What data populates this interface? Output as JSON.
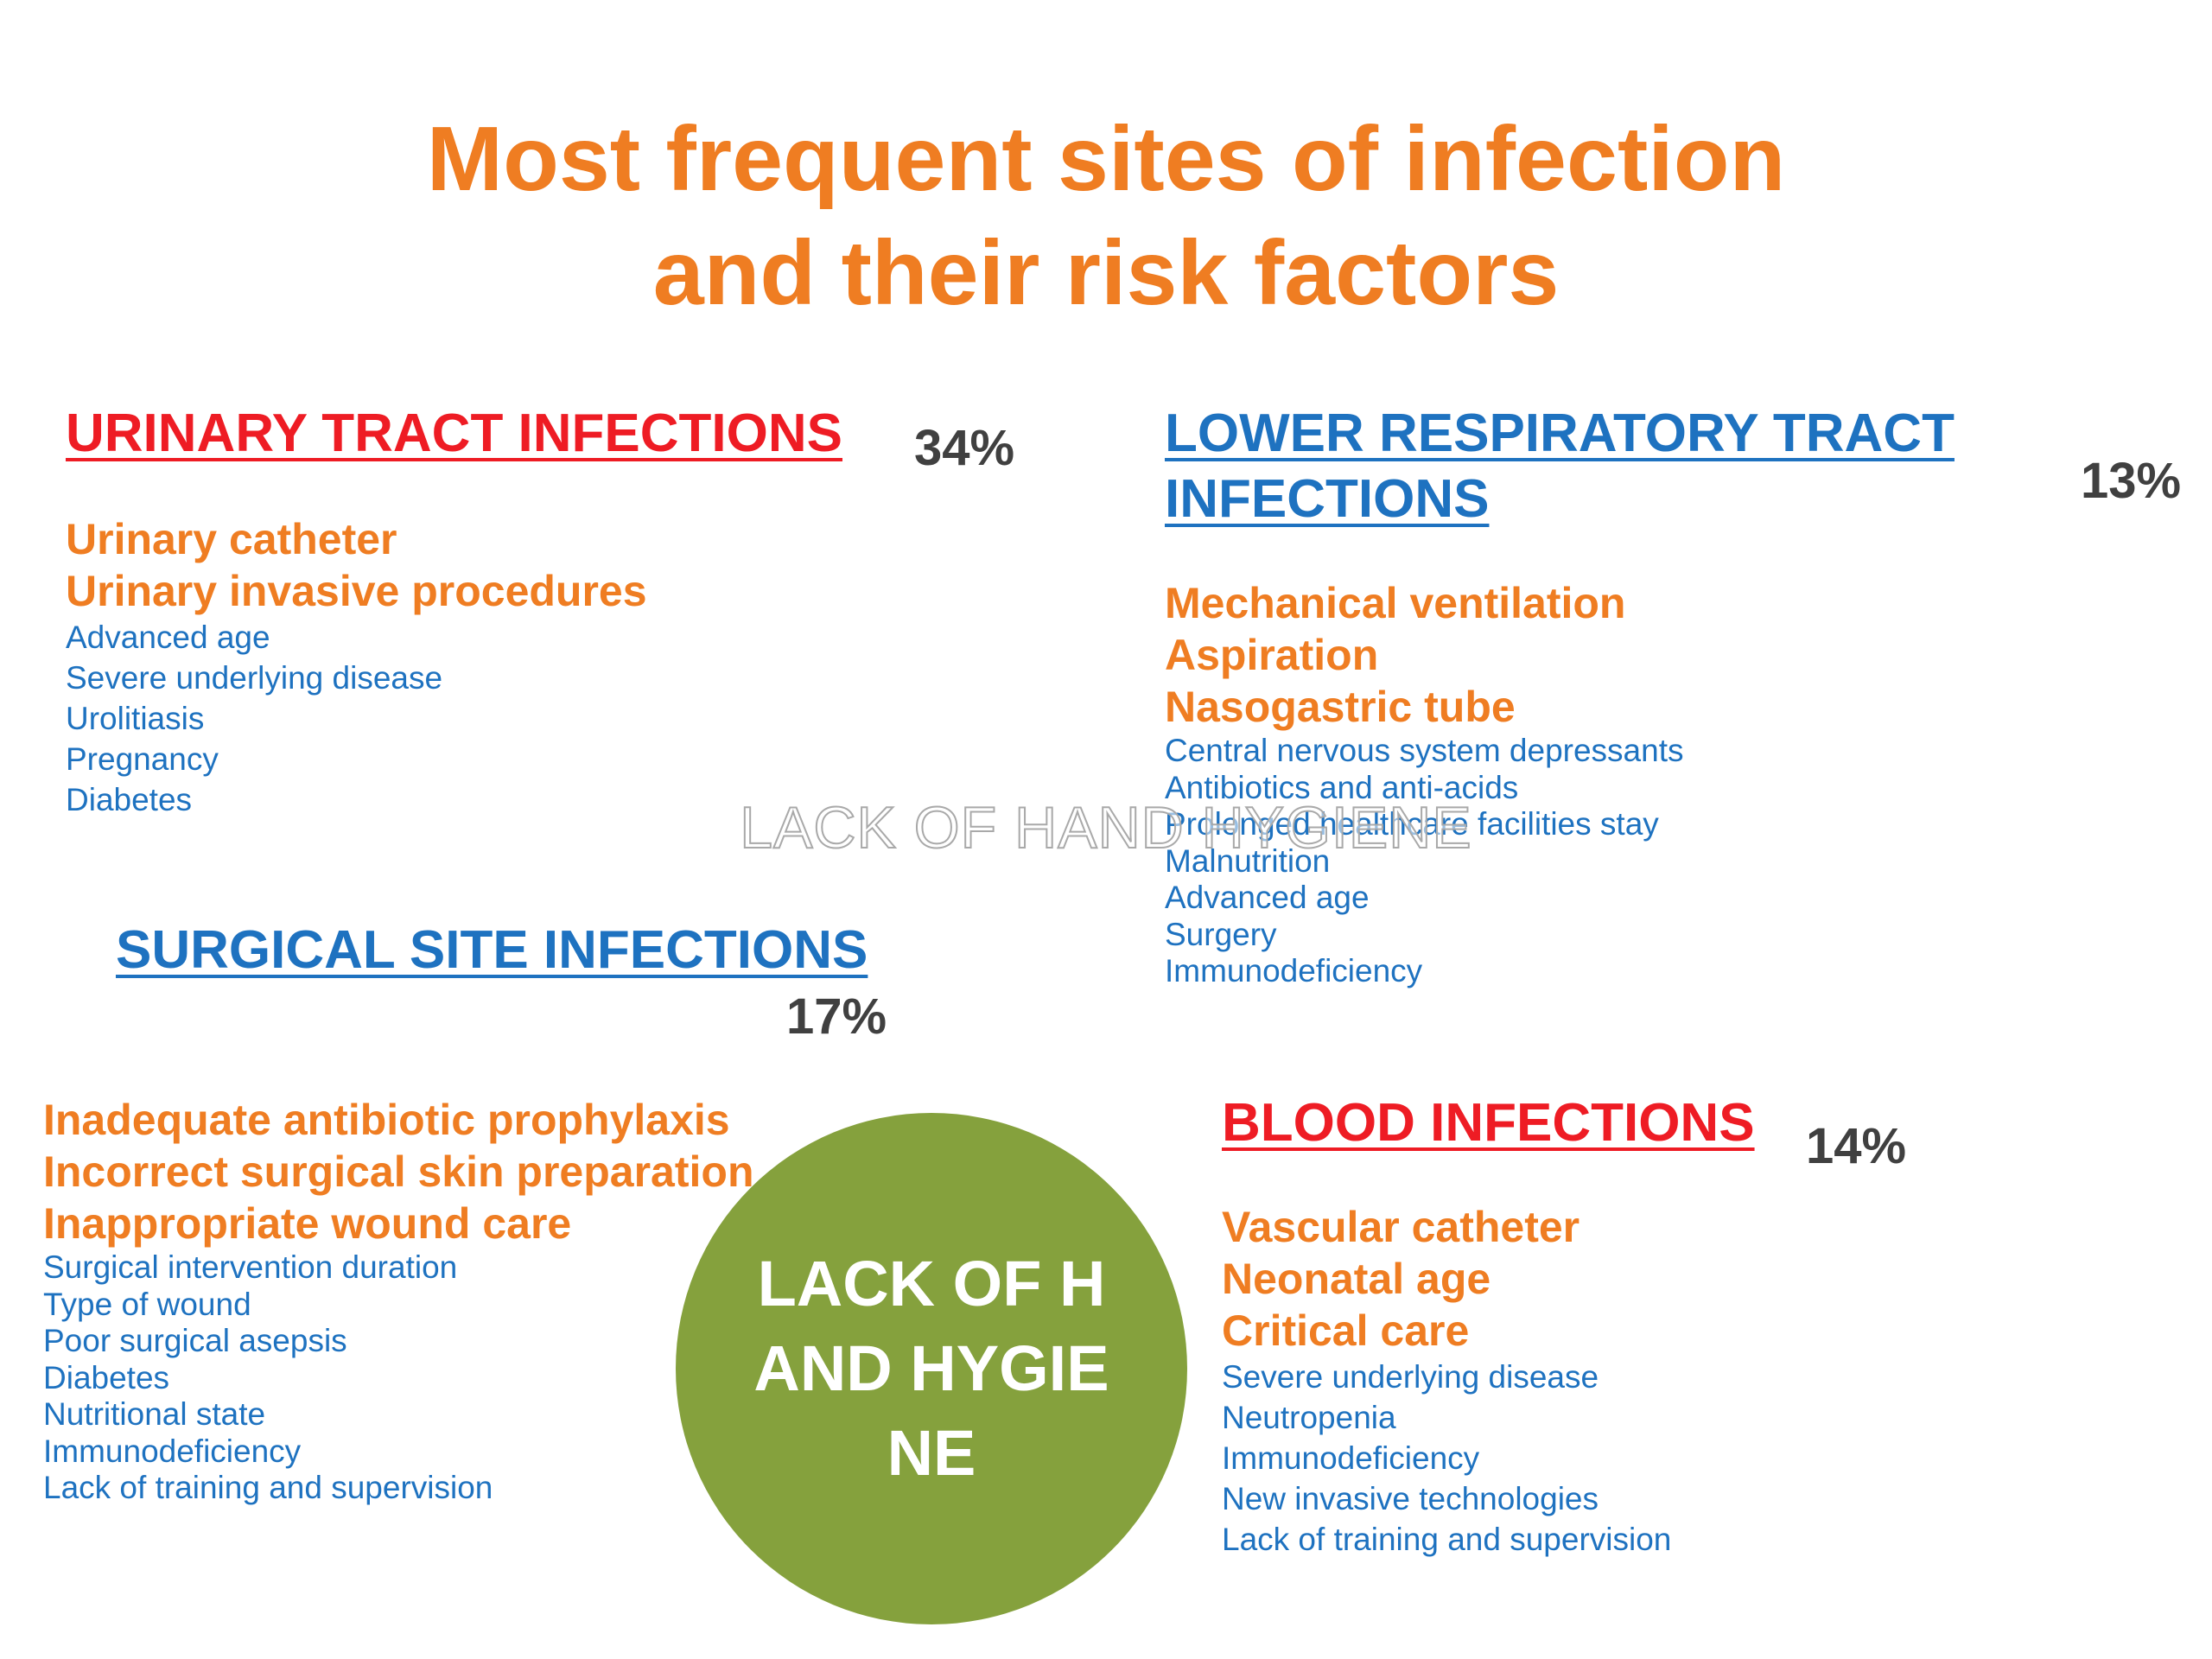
{
  "title": {
    "line1": "Most frequent sites of infection",
    "line2": "and their risk factors"
  },
  "urinary": {
    "heading": "URINARY TRACT INFECTIONS",
    "percent": "34%",
    "factors_major": [
      "Urinary catheter",
      "Urinary invasive procedures"
    ],
    "factors_minor": [
      "Advanced age",
      "Severe underlying disease",
      "Urolitiasis",
      "Pregnancy",
      "Diabetes"
    ]
  },
  "respiratory": {
    "heading_line1": "LOWER RESPIRATORY TRACT",
    "heading_line2": "INFECTIONS",
    "percent": "13%",
    "factors_major": [
      "Mechanical ventilation",
      "Aspiration",
      "Nasogastric tube"
    ],
    "factors_minor": [
      "Central nervous system depressants",
      "Antibiotics and anti-acids",
      "Prolonged healthcare facilities stay",
      "Malnutrition",
      "Advanced age",
      "Surgery",
      "Immunodeficiency"
    ]
  },
  "surgical": {
    "heading": "SURGICAL SITE INFECTIONS",
    "percent": "17%",
    "factors_major": [
      "Inadequate antibiotic prophylaxis",
      "Incorrect surgical skin preparation",
      "Inappropriate wound care"
    ],
    "factors_minor": [
      "Surgical intervention duration",
      "Type of wound",
      "Poor surgical asepsis",
      "Diabetes",
      "Nutritional state",
      "Immunodeficiency",
      "Lack of training and supervision"
    ]
  },
  "blood": {
    "heading": "BLOOD INFECTIONS",
    "percent": "14%",
    "factors_major": [
      "Vascular catheter",
      "Neonatal age",
      "Critical care"
    ],
    "factors_minor": [
      "Severe underlying disease",
      "Neutropenia",
      "Immunodeficiency",
      "New invasive technologies",
      "Lack of training and supervision"
    ]
  },
  "watermark": "LACK OF HAND HYGIENE",
  "circle": {
    "text": "LACK OF HAND HYGIENE",
    "color": "#85a13d"
  },
  "colors": {
    "title_orange": "#ef7d22",
    "heading_red": "#ee1c24",
    "heading_blue": "#1e72c0",
    "minor_blue": "#1e72c0",
    "percent_gray": "#404040"
  }
}
